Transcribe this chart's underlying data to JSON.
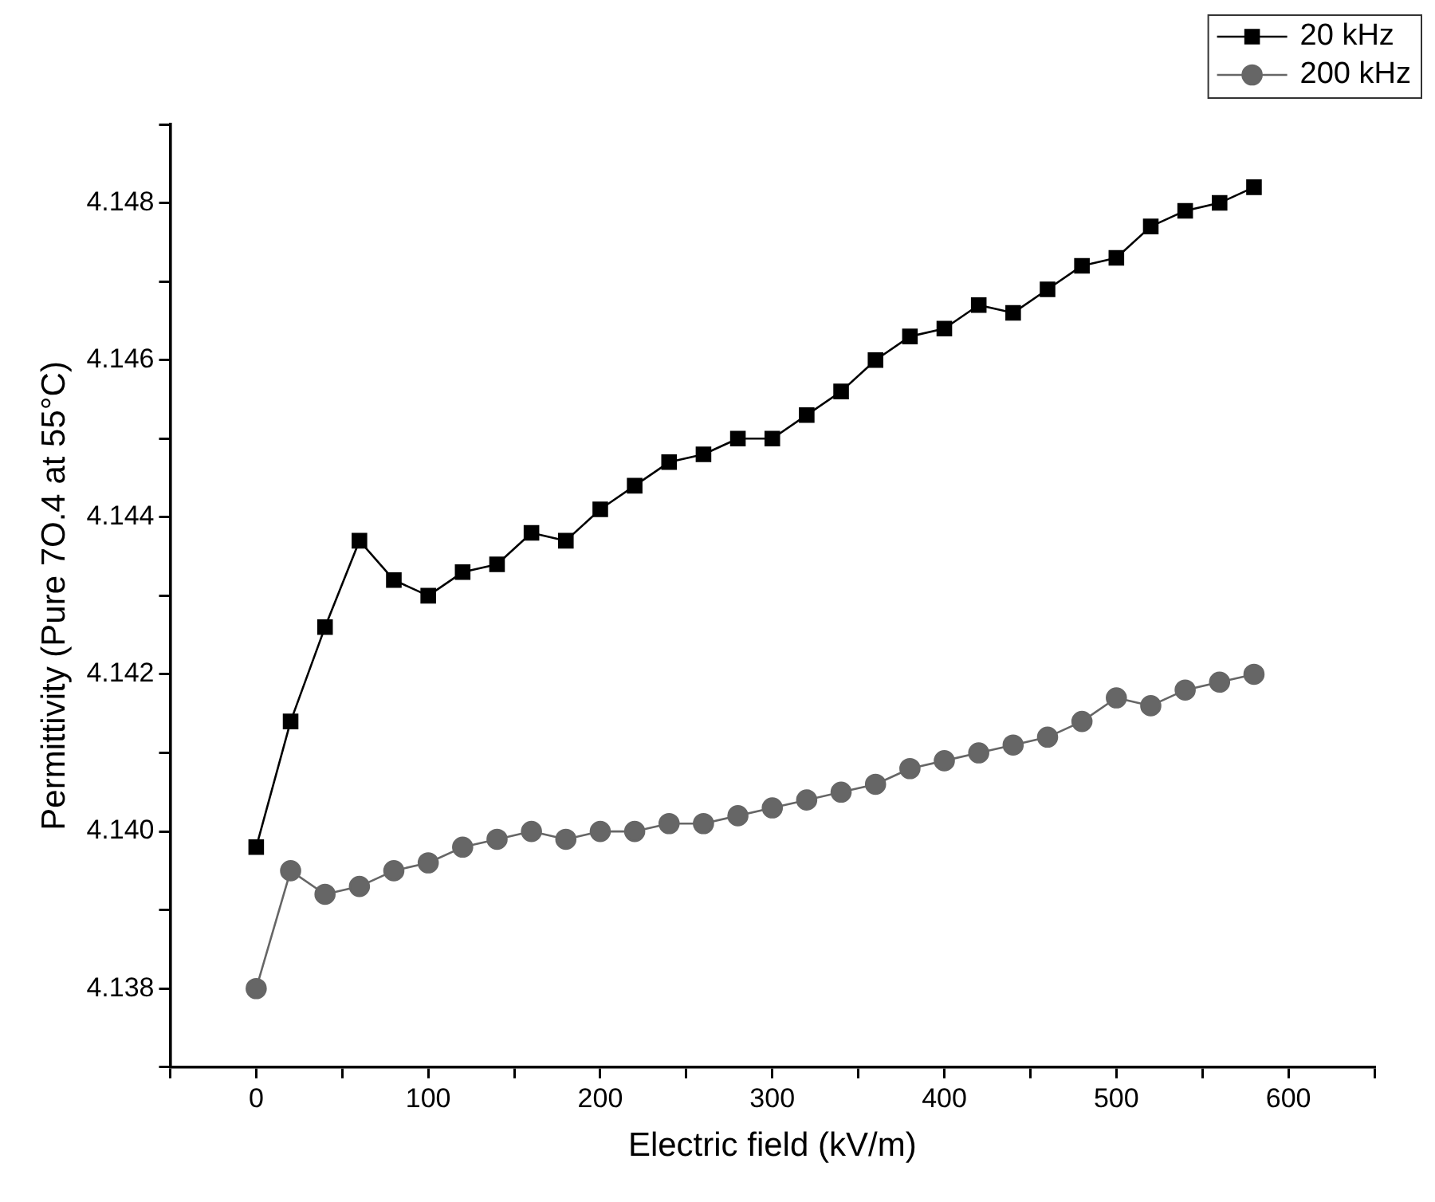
{
  "chart_data": {
    "type": "line",
    "xlabel": "Electric field (kV/m)",
    "ylabel": "Permittivity (Pure 7O.4 at 55°C)",
    "x": [
      0,
      20,
      40,
      60,
      80,
      100,
      120,
      140,
      160,
      180,
      200,
      220,
      240,
      260,
      280,
      300,
      320,
      340,
      360,
      380,
      400,
      420,
      440,
      460,
      480,
      500,
      520,
      540,
      560,
      580
    ],
    "series": [
      {
        "name": "20 kHz",
        "color": "#000000",
        "marker": "square",
        "values": [
          4.1398,
          4.1414,
          4.1426,
          4.1437,
          4.1432,
          4.143,
          4.1433,
          4.1434,
          4.1438,
          4.1437,
          4.1441,
          4.1444,
          4.1447,
          4.1448,
          4.145,
          4.145,
          4.1453,
          4.1456,
          4.146,
          4.1463,
          4.1464,
          4.1467,
          4.1466,
          4.1469,
          4.1472,
          4.1473,
          4.1477,
          4.1479,
          4.148,
          4.1482
        ]
      },
      {
        "name": "200 kHz",
        "color": "#666666",
        "marker": "circle",
        "values": [
          4.138,
          4.1395,
          4.1392,
          4.1393,
          4.1395,
          4.1396,
          4.1398,
          4.1399,
          4.14,
          4.1399,
          4.14,
          4.14,
          4.1401,
          4.1401,
          4.1402,
          4.1403,
          4.1404,
          4.1405,
          4.1406,
          4.1408,
          4.1409,
          4.141,
          4.1411,
          4.1412,
          4.1414,
          4.1417,
          4.1416,
          4.1418,
          4.1419,
          4.142
        ]
      }
    ],
    "xlim": [
      -50,
      650
    ],
    "xticks": [
      {
        "value": -50,
        "label": null
      },
      0,
      {
        "value": 50,
        "label": null
      },
      100,
      {
        "value": 150,
        "label": null
      },
      200,
      {
        "value": 250,
        "label": null
      },
      300,
      {
        "value": 350,
        "label": null
      },
      400,
      {
        "value": 450,
        "label": null
      },
      500,
      {
        "value": 550,
        "label": null
      },
      600,
      {
        "value": 650,
        "label": null
      }
    ],
    "ylim": [
      4.137,
      4.149
    ],
    "yticks": [
      {
        "value": 4.137,
        "label": null
      },
      4.138,
      {
        "value": 4.139,
        "label": null
      },
      {
        "value": 4.14,
        "label": "4.140"
      },
      {
        "value": 4.141,
        "label": null
      },
      4.142,
      {
        "value": 4.143,
        "label": null
      },
      4.144,
      {
        "value": 4.145,
        "label": null
      },
      4.146,
      {
        "value": 4.147,
        "label": null
      },
      4.148,
      {
        "value": 4.149,
        "label": null
      }
    ],
    "grid": false,
    "legend": "top right",
    "line_style": "solid"
  }
}
